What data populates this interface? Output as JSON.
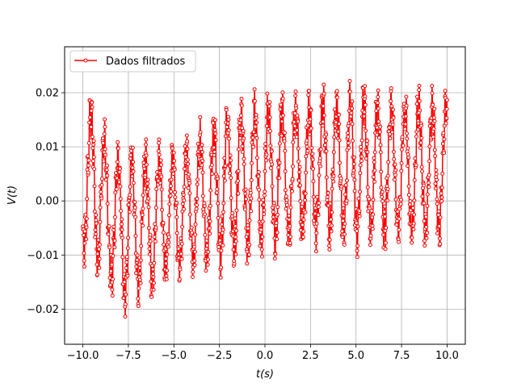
{
  "chart_data": {
    "type": "line",
    "title": "",
    "xlabel": "t(s)",
    "ylabel": "V(t)",
    "xlim": [
      -11.0,
      11.0
    ],
    "ylim": [
      -0.0265,
      0.0285
    ],
    "xticks": [
      -10.0,
      -7.5,
      -5.0,
      -2.5,
      0.0,
      2.5,
      5.0,
      7.5,
      10.0
    ],
    "xtick_labels": [
      "−10.0",
      "−7.5",
      "−5.0",
      "−2.5",
      "0.0",
      "2.5",
      "5.0",
      "7.5",
      "10.0"
    ],
    "yticks": [
      -0.02,
      -0.01,
      0.0,
      0.01,
      0.02
    ],
    "ytick_labels": [
      "−0.02",
      "−0.01",
      "0.00",
      "0.01",
      "0.02"
    ],
    "grid": true,
    "legend_position": "top-left",
    "series": [
      {
        "name": "Dados filtrados",
        "color": "#ff0000",
        "marker": "open-circle",
        "x_range": [
          -10.0,
          10.0
        ],
        "oscillation_period": 0.75,
        "trend": [
          {
            "x": -10.0,
            "center": 0.002,
            "amplitude": 0.015
          },
          {
            "x": -9.4,
            "center": 0.004,
            "amplitude": 0.019
          },
          {
            "x": -8.5,
            "center": -0.003,
            "amplitude": 0.015
          },
          {
            "x": -8.0,
            "center": -0.005,
            "amplitude": 0.018
          },
          {
            "x": -6.5,
            "center": -0.004,
            "amplitude": 0.016
          },
          {
            "x": -5.0,
            "center": -0.002,
            "amplitude": 0.014
          },
          {
            "x": -2.5,
            "center": 0.002,
            "amplitude": 0.017
          },
          {
            "x": 0.0,
            "center": 0.005,
            "amplitude": 0.017
          },
          {
            "x": 2.5,
            "center": 0.006,
            "amplitude": 0.016
          },
          {
            "x": 5.0,
            "center": 0.006,
            "amplitude": 0.017
          },
          {
            "x": 7.5,
            "center": 0.006,
            "amplitude": 0.016
          },
          {
            "x": 10.0,
            "center": 0.006,
            "amplitude": 0.016
          }
        ]
      }
    ]
  }
}
